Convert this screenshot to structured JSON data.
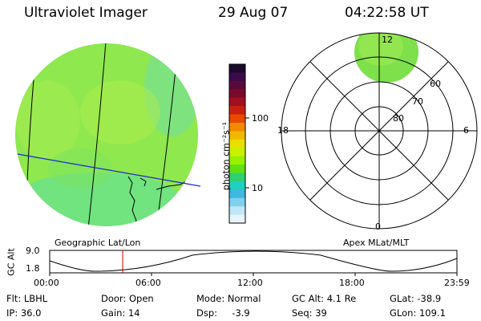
{
  "header": {
    "instrument": "Ultraviolet Imager",
    "date": "29 Aug 07",
    "time": "04:22:58 UT"
  },
  "colorbar": {
    "label": "photon cm⁻²s⁻¹",
    "ticks": [
      "100",
      "10"
    ],
    "colors": [
      "#1a0a2e",
      "#3a0a4a",
      "#5a0a3a",
      "#7a0a2a",
      "#a01020",
      "#c82010",
      "#e84a00",
      "#f08a00",
      "#f0b800",
      "#e8e000",
      "#c8f000",
      "#98f000",
      "#60e010",
      "#30d070",
      "#20d0c0",
      "#40b8e0",
      "#80d0f0",
      "#c0e8f8",
      "#e8f4fc"
    ]
  },
  "left_panel": {
    "label": "Geographic Lat/Lon",
    "fill_color": "#8ee84e"
  },
  "right_panel": {
    "label": "Apex MLat/MLT",
    "mlt_labels": {
      "top": "12",
      "left": "18",
      "right": "6",
      "bottom": "0"
    },
    "lat_labels": [
      "60",
      "70",
      "80"
    ],
    "fill_color": "#7ee04a"
  },
  "altitude_plot": {
    "axis_label": "GC Alt",
    "y_ticks": [
      "9.0",
      "1.8"
    ],
    "x_ticks": [
      "00:00",
      "06:00",
      "12:00",
      "18:00",
      "23:59"
    ],
    "current_time_marker_color": "#cc0000"
  },
  "info": {
    "flt": "Flt: LBHL",
    "ip": "IP: 36.0",
    "door": "Door: Open",
    "gain": "Gain: 14",
    "mode": "Mode: Normal",
    "dsp": "Dsp:     -3.9",
    "gcalt": "GC Alt: 4.1 Re",
    "seq": "Seq: 39",
    "glat": "GLat: -38.9",
    "glon": "GLon: 109.1"
  }
}
